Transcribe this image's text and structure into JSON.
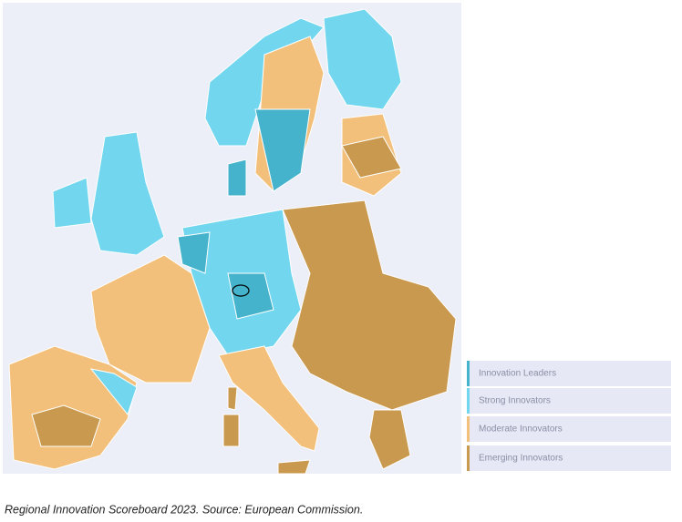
{
  "legend": {
    "items": [
      {
        "label": "Innovation Leaders",
        "color": "#45b3cb"
      },
      {
        "label": "Strong Innovators",
        "color": "#72d6ef"
      },
      {
        "label": "Moderate Innovators",
        "color": "#f2c07b"
      },
      {
        "label": "Emerging Innovators",
        "color": "#c8994e"
      }
    ]
  },
  "caption": "Regional Innovation Scoreboard 2023. Source: European Commission."
}
